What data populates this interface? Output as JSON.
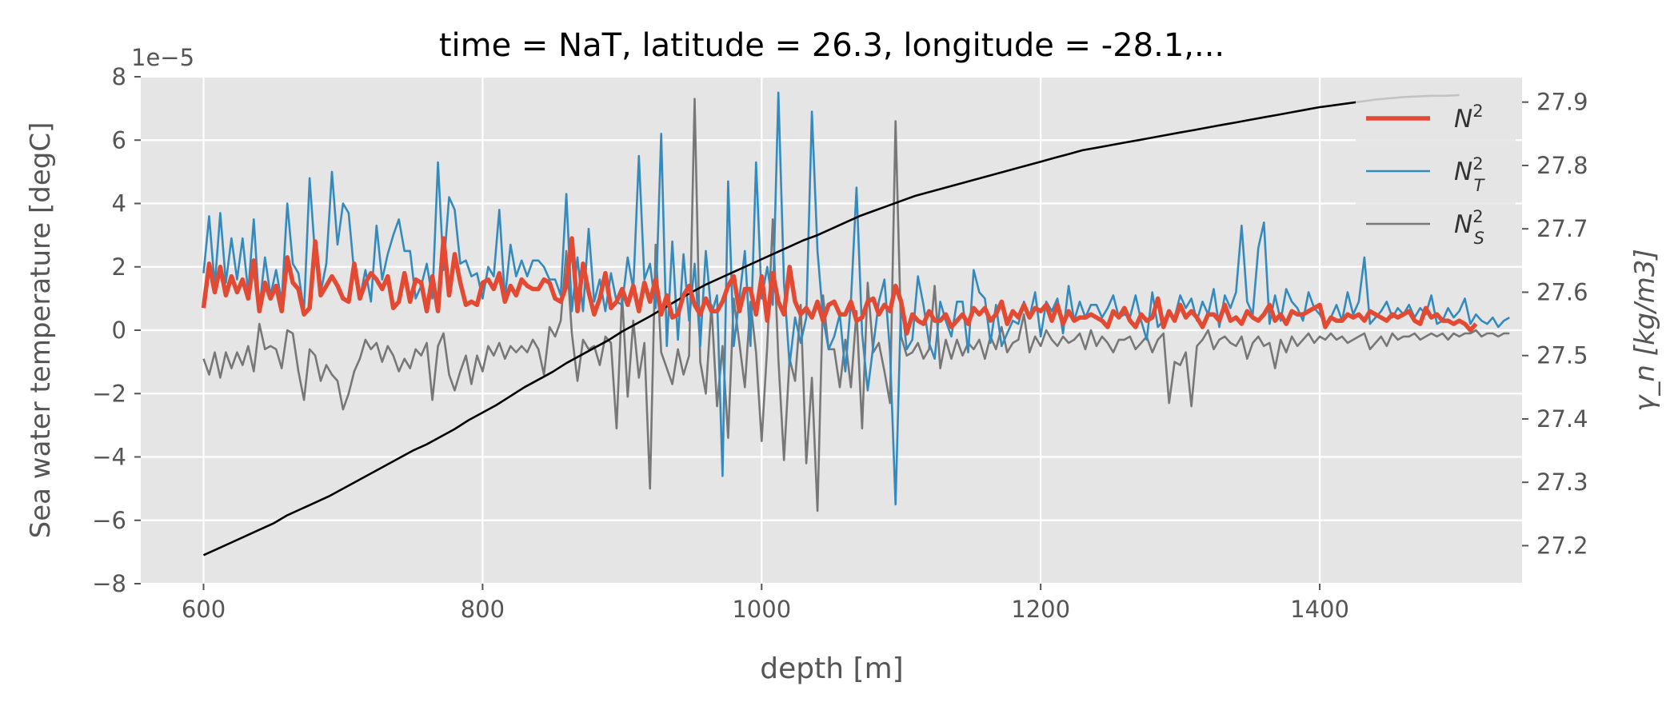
{
  "chart_data": {
    "type": "line",
    "title": "time = NaT, latitude = 26.3, longitude = -28.1,...",
    "xlabel": "depth [m]",
    "ylabel": "Sea water temperature [degC]",
    "y2label": "γ_n [kg/m3]",
    "y_offset_label": "1e−5",
    "xlim": [
      555,
      1545
    ],
    "ylim": [
      -8,
      8
    ],
    "y2lim": [
      27.14,
      27.94
    ],
    "xticks": [
      600,
      800,
      1000,
      1200,
      1400
    ],
    "yticks": [
      -8,
      -6,
      -4,
      -2,
      0,
      2,
      4,
      6,
      8
    ],
    "y2ticks": [
      27.2,
      27.3,
      27.4,
      27.5,
      27.6,
      27.7,
      27.8,
      27.9
    ],
    "grid": true,
    "legend_position": "top-right",
    "series": [
      {
        "name": "N²",
        "label_base": "N",
        "label_sup": "2",
        "label_sub": "",
        "color": "#e24a33",
        "axis": "left",
        "line": "thick",
        "x_start": 600,
        "x_step": 4,
        "values": [
          0.7,
          2.1,
          1.2,
          2.0,
          1.1,
          1.7,
          1.2,
          1.6,
          1.0,
          2.2,
          0.6,
          1.5,
          1.0,
          1.4,
          0.6,
          2.3,
          1.5,
          1.3,
          0.5,
          0.7,
          2.8,
          1.1,
          1.4,
          1.7,
          1.4,
          1.0,
          0.9,
          2.1,
          1.0,
          1.5,
          1.8,
          1.6,
          1.3,
          1.7,
          0.7,
          0.9,
          1.8,
          0.9,
          1.6,
          1.5,
          0.6,
          1.7,
          0.6,
          2.9,
          1.1,
          2.4,
          1.5,
          0.8,
          0.9,
          0.8,
          1.5,
          1.6,
          1.3,
          1.8,
          0.9,
          1.4,
          1.1,
          1.6,
          1.4,
          1.3,
          1.3,
          1.6,
          1.5,
          1.0,
          0.9,
          1.4,
          2.9,
          0.6,
          2.1,
          1.2,
          0.5,
          1.0,
          1.8,
          0.7,
          0.9,
          1.3,
          0.8,
          1.4,
          0.6,
          1.5,
          0.9,
          1.6,
          0.5,
          1.1,
          0.4,
          0.5,
          1.1,
          1.4,
          0.8,
          0.5,
          1.0,
          0.6,
          0.6,
          0.9,
          1.4,
          1.7,
          0.6,
          1.3,
          1.3,
          0.5,
          1.7,
          0.3,
          1.8,
          0.9,
          0.5,
          2.0,
          0.9,
          0.5,
          0.7,
          0.4,
          0.9,
          0.3,
          0.8,
          0.9,
          0.5,
          0.5,
          0.9,
          0.3,
          0.4,
          0.9,
          1.0,
          0.5,
          0.8,
          0.6,
          1.4,
          0.9,
          -0.1,
          0.5,
          0.3,
          0.2,
          0.6,
          0.3,
          0.3,
          0.5,
          0.1,
          0.3,
          0.5,
          0.2,
          0.7,
          0.5,
          0.7,
          0.3,
          0.5,
          0.9,
          0.2,
          0.6,
          0.4,
          0.8,
          0.4,
          0.7,
          0.6,
          0.8,
          0.3,
          0.8,
          0.2,
          0.6,
          0.3,
          0.4,
          0.4,
          0.5,
          0.4,
          0.3,
          0.1,
          0.6,
          0.4,
          0.7,
          0.3,
          0.1,
          0.5,
          0.3,
          0.4,
          1.0,
          0.1,
          0.6,
          0.3,
          0.8,
          0.4,
          0.6,
          0.4,
          0.1,
          0.5,
          0.5,
          0.3,
          0.8,
          0.3,
          0.4,
          0.2,
          0.6,
          0.4,
          0.3,
          0.5,
          0.8,
          0.3,
          0.5,
          0.2,
          0.6,
          0.5,
          0.5,
          0.6,
          0.7,
          0.8,
          0.1,
          0.4,
          0.3,
          0.3,
          0.5,
          0.4,
          0.5,
          0.3,
          0.6,
          0.5,
          0.4,
          0.3,
          0.5,
          0.4,
          0.5,
          0.6,
          0.3,
          0.2,
          0.7,
          0.4,
          0.5,
          0.3,
          0.3,
          0.2,
          0.3,
          0.2,
          0.0,
          0.2
        ]
      },
      {
        "name": "N_T²",
        "label_base": "N",
        "label_sup": "2",
        "label_sub": "T",
        "color": "#348abd",
        "axis": "left",
        "line": "thin",
        "x_start": 600,
        "x_step": 4,
        "values": [
          1.8,
          3.6,
          1.4,
          3.7,
          1.5,
          2.9,
          1.6,
          2.9,
          1.2,
          3.5,
          0.7,
          2.3,
          1.1,
          1.9,
          0.9,
          4.0,
          2.1,
          1.8,
          0.6,
          4.8,
          2.3,
          1.2,
          2.1,
          5.0,
          2.7,
          4.0,
          3.7,
          1.8,
          1.0,
          1.9,
          0.9,
          3.3,
          1.6,
          2.4,
          3.0,
          3.5,
          2.5,
          2.5,
          1.0,
          1.4,
          2.1,
          1.0,
          5.3,
          1.9,
          4.2,
          3.8,
          2.1,
          2.2,
          1.7,
          1.8,
          1.0,
          2.0,
          1.7,
          3.8,
          1.0,
          2.7,
          1.7,
          2.2,
          1.7,
          2.2,
          2.2,
          2.0,
          1.6,
          1.6,
          1.1,
          4.3,
          0.6,
          2.3,
          0.6,
          3.2,
          0.9,
          1.6,
          0.6,
          1.8,
          0.9,
          0.8,
          2.3,
          1.3,
          5.5,
          1.6,
          2.1,
          0.7,
          6.2,
          -0.5,
          2.8,
          -0.3,
          2.4,
          0.3,
          2.1,
          -0.5,
          2.5,
          0.5,
          1.1,
          -4.6,
          4.7,
          -0.5,
          1.0,
          2.5,
          -0.5,
          5.3,
          1.0,
          2.0,
          0.8,
          7.5,
          1.5,
          -1.1,
          0.4,
          -0.4,
          0.4,
          6.9,
          2.5,
          0.4,
          -0.6,
          -0.2,
          0.5,
          -1.3,
          0.9,
          4.5,
          -0.1,
          -1.9,
          -0.5,
          0.9,
          1.6,
          -0.7,
          -5.5,
          1.0,
          -0.6,
          -0.3,
          1.7,
          0.8,
          -0.4,
          -0.9,
          0.9,
          0.3,
          -0.2,
          0.9,
          0.9,
          -0.7,
          1.9,
          1.2,
          1.0,
          -0.4,
          0.8,
          -0.5,
          -0.1,
          0.3,
          0.2,
          0.9,
          0.4,
          1.2,
          -0.2,
          0.9,
          0.6,
          1.0,
          -0.1,
          1.4,
          0.3,
          0.9,
          0.4,
          0.8,
          0.8,
          0.4,
          0.7,
          1.1,
          0.4,
          0.5,
          0.4,
          1.1,
          0.3,
          -0.3,
          1.2,
          0.1,
          0.3,
          0.6,
          0.4,
          1.1,
          0.7,
          1.0,
          0.3,
          0.9,
          0.5,
          1.3,
          0.1,
          1.1,
          0.7,
          1.2,
          3.3,
          0.9,
          0.5,
          2.6,
          3.4,
          0.2,
          1.1,
          0.3,
          1.3,
          0.9,
          0.7,
          0.3,
          1.2,
          0.7,
          0.5,
          0.2,
          0.4,
          0.8,
          0.3,
          1.2,
          0.5,
          0.9,
          2.3,
          0.2,
          0.4,
          0.6,
          0.9,
          0.4,
          0.7,
          0.5,
          0.8,
          0.4,
          0.7,
          0.5,
          1.1,
          0.2,
          0.3,
          0.7,
          0.4,
          0.6,
          1.0,
          0.2,
          0.5,
          0.3,
          0.2,
          0.4,
          0.1,
          0.3,
          0.4
        ]
      },
      {
        "name": "N_S²",
        "label_base": "N",
        "label_sup": "2",
        "label_sub": "S",
        "color": "#777777",
        "axis": "left",
        "line": "thin",
        "x_start": 600,
        "x_step": 4,
        "values": [
          -0.9,
          -1.4,
          -0.7,
          -1.5,
          -0.7,
          -1.2,
          -0.7,
          -1.1,
          -0.5,
          -1.3,
          0.2,
          -0.6,
          -0.5,
          -0.6,
          -1.2,
          0.0,
          -0.1,
          -1.3,
          -2.2,
          -0.6,
          -0.8,
          -1.6,
          -1.1,
          -1.4,
          -1.6,
          -2.5,
          -2.0,
          -1.3,
          -0.9,
          -0.3,
          -0.6,
          -0.4,
          -1.0,
          -0.5,
          -0.8,
          -1.3,
          -0.9,
          -1.2,
          -0.6,
          -0.8,
          -0.4,
          -2.2,
          -0.5,
          -0.1,
          -1.4,
          -1.9,
          -1.3,
          -0.8,
          -1.7,
          -0.8,
          -1.3,
          -0.5,
          -0.8,
          -0.4,
          -0.9,
          -0.5,
          -0.7,
          -0.5,
          -0.7,
          -0.3,
          -0.6,
          -1.4,
          0.1,
          -0.2,
          0.3,
          2.5,
          -0.1,
          -1.6,
          -0.3,
          -0.6,
          -0.5,
          -1.1,
          -0.2,
          -0.4,
          -3.1,
          1.1,
          -2.1,
          0.3,
          -1.5,
          -0.4,
          -5.0,
          2.7,
          -0.7,
          -1.2,
          -1.7,
          -0.6,
          -1.4,
          -0.8,
          7.3,
          -1.0,
          -2.0,
          0.8,
          -2.4,
          -0.5,
          -3.4,
          1.0,
          -0.4,
          -1.8,
          0.9,
          -0.7,
          -3.5,
          -0.5,
          3.5,
          -0.9,
          -4.1,
          -0.9,
          -1.6,
          0.8,
          -4.2,
          -1.5,
          -5.7,
          1.1,
          -0.6,
          -0.6,
          -1.8,
          -0.3,
          -1.8,
          0.6,
          -3.1,
          1.5,
          -0.7,
          -0.4,
          -1.3,
          -2.3,
          6.6,
          -0.2,
          -0.8,
          -0.7,
          -0.4,
          -0.9,
          -0.6,
          1.4,
          -1.2,
          -0.3,
          -0.9,
          -0.3,
          -0.8,
          -0.4,
          -0.6,
          -0.3,
          -0.9,
          -0.2,
          -0.6,
          0.1,
          -0.7,
          -0.4,
          -0.3,
          0.5,
          -0.7,
          -0.2,
          -0.5,
          0.0,
          -0.3,
          -0.5,
          -0.2,
          -0.4,
          -0.3,
          -0.1,
          -0.6,
          0.0,
          -0.5,
          -0.2,
          -0.4,
          -0.7,
          -0.3,
          -0.3,
          -0.2,
          -0.6,
          -0.4,
          -0.2,
          -0.7,
          -0.3,
          -0.1,
          -2.3,
          -1.0,
          -1.1,
          -0.7,
          -2.4,
          -0.5,
          -0.3,
          0.0,
          -0.6,
          -0.3,
          -0.2,
          -0.4,
          -0.5,
          -0.2,
          -0.9,
          -0.4,
          -0.2,
          -0.5,
          -0.4,
          -1.2,
          -0.3,
          -0.7,
          -0.2,
          -0.5,
          -0.3,
          -0.1,
          -0.4,
          -0.2,
          -0.3,
          -0.1,
          -0.3,
          -0.2,
          -0.4,
          -0.3,
          -0.2,
          -0.1,
          -0.6,
          -0.4,
          -0.2,
          -0.5,
          -0.1,
          -0.3,
          -0.2,
          -0.2,
          -0.1,
          -0.3,
          -0.2,
          -0.1,
          -0.2,
          -0.1,
          -0.3,
          -0.1,
          -0.2,
          -0.1,
          -0.1,
          0.0,
          -0.2,
          -0.1,
          -0.1,
          -0.2,
          -0.1,
          -0.1
        ]
      },
      {
        "name": "γn",
        "color": "#000000",
        "axis": "right",
        "line": "thin",
        "in_legend": false,
        "x": [
          600,
          610,
          620,
          630,
          640,
          650,
          660,
          670,
          680,
          690,
          700,
          710,
          720,
          730,
          740,
          750,
          760,
          770,
          780,
          790,
          800,
          810,
          820,
          830,
          840,
          850,
          860,
          870,
          880,
          890,
          900,
          910,
          920,
          930,
          940,
          950,
          960,
          970,
          980,
          990,
          1000,
          1010,
          1020,
          1030,
          1040,
          1050,
          1060,
          1070,
          1080,
          1090,
          1100,
          1110,
          1120,
          1130,
          1140,
          1150,
          1160,
          1170,
          1180,
          1190,
          1200,
          1210,
          1220,
          1230,
          1240,
          1250,
          1260,
          1270,
          1280,
          1290,
          1300,
          1310,
          1320,
          1330,
          1340,
          1350,
          1360,
          1370,
          1380,
          1390,
          1400,
          1410,
          1420,
          1430,
          1440,
          1450,
          1460,
          1470,
          1480,
          1490,
          1500
        ],
        "values": [
          27.185,
          27.195,
          27.205,
          27.215,
          27.225,
          27.235,
          27.248,
          27.258,
          27.268,
          27.278,
          27.29,
          27.302,
          27.314,
          27.326,
          27.338,
          27.35,
          27.36,
          27.372,
          27.384,
          27.398,
          27.41,
          27.422,
          27.436,
          27.45,
          27.462,
          27.474,
          27.488,
          27.5,
          27.512,
          27.524,
          27.538,
          27.55,
          27.562,
          27.575,
          27.588,
          27.6,
          27.612,
          27.622,
          27.632,
          27.642,
          27.652,
          27.662,
          27.672,
          27.682,
          27.69,
          27.7,
          27.71,
          27.72,
          27.728,
          27.736,
          27.744,
          27.752,
          27.758,
          27.764,
          27.77,
          27.776,
          27.782,
          27.788,
          27.794,
          27.8,
          27.806,
          27.812,
          27.818,
          27.824,
          27.828,
          27.832,
          27.836,
          27.84,
          27.844,
          27.848,
          27.852,
          27.856,
          27.86,
          27.864,
          27.868,
          27.872,
          27.876,
          27.88,
          27.884,
          27.888,
          27.892,
          27.895,
          27.898,
          27.901,
          27.904,
          27.906,
          27.908,
          27.909,
          27.91,
          27.91,
          27.911
        ]
      }
    ]
  }
}
